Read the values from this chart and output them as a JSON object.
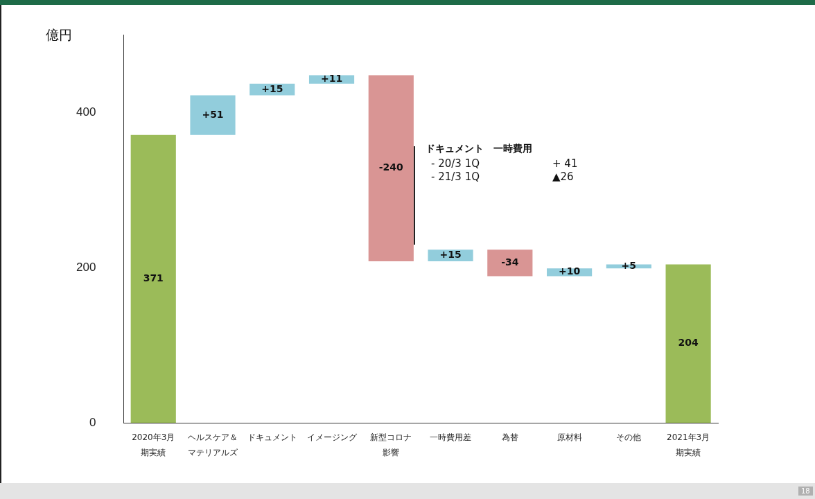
{
  "chart_data": {
    "type": "bar",
    "ylabel": "億円",
    "categories": [
      "2020年3月期実績",
      "ヘルスケア＆マテリアルズ",
      "ドキュメント",
      "イメージング",
      "新型コロナ影響",
      "一時費用差",
      "為替",
      "原材料",
      "その他",
      "2021年3月期実績"
    ],
    "values": [
      371,
      51,
      15,
      11,
      -240,
      15,
      -34,
      10,
      5,
      204
    ],
    "base": [
      0,
      371,
      422,
      437,
      448,
      208,
      223,
      189,
      199,
      0
    ],
    "colors": [
      "#9bbb59",
      "#92cddc",
      "#92cddc",
      "#92cddc",
      "#d99594",
      "#92cddc",
      "#d99594",
      "#92cddc",
      "#92cddc",
      "#9bbb59"
    ],
    "value_labels": [
      "371",
      "+51",
      "+15",
      "+11",
      "-240",
      "+15",
      "-34",
      "+10",
      "+5",
      "204"
    ],
    "ylim": [
      0,
      500
    ],
    "yticks": [
      0,
      200,
      400
    ],
    "grid": false,
    "legend": false,
    "annotations": [
      "ドキュメント　一時費用",
      "- 20/3 1Q",
      "+ 41",
      "- 21/3 1Q",
      "▲26",
      "18"
    ]
  }
}
